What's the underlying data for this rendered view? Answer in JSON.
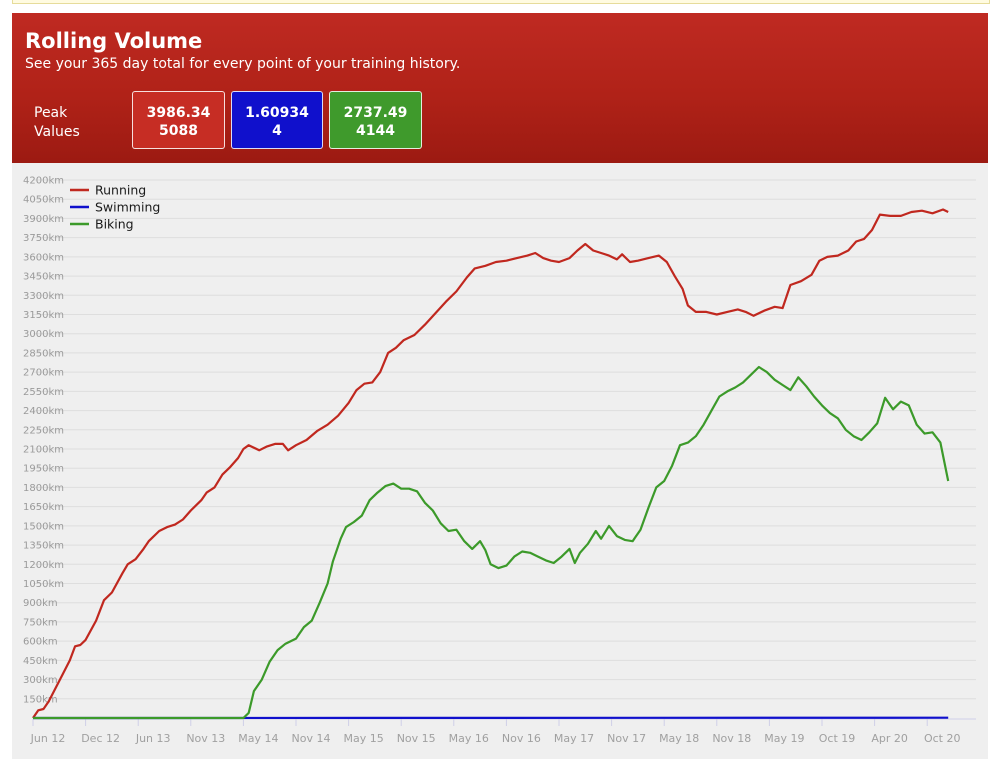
{
  "header": {
    "title": "Rolling Volume",
    "subtitle": "See your 365 day total for every point of your training history.",
    "peak_label_line1": "Peak",
    "peak_label_line2": "Values"
  },
  "peaks": {
    "running": {
      "line1": "3986.34",
      "line2": "5088",
      "color": "#c62d24"
    },
    "swimming": {
      "line1": "1.60934",
      "line2": "4",
      "color": "#1010cc"
    },
    "biking": {
      "line1": "2737.49",
      "line2": "4144",
      "color": "#3f9a2c"
    }
  },
  "chart_data": {
    "type": "line",
    "title": "",
    "xlabel": "",
    "ylabel": "",
    "ylim": [
      0,
      4200
    ],
    "y_ticks": [
      150,
      300,
      450,
      600,
      750,
      900,
      1050,
      1200,
      1350,
      1500,
      1650,
      1800,
      1950,
      2100,
      2250,
      2400,
      2550,
      2700,
      2850,
      3000,
      3150,
      3300,
      3450,
      3600,
      3750,
      3900,
      4050,
      4200
    ],
    "y_tick_suffix": "km",
    "x_ticks": [
      "Jun 12",
      "Dec 12",
      "Jun 13",
      "Nov 13",
      "May 14",
      "Nov 14",
      "May 15",
      "Nov 15",
      "May 16",
      "Nov 16",
      "May 17",
      "Nov 17",
      "May 18",
      "Nov 18",
      "May 19",
      "Oct 19",
      "Apr 20",
      "Oct 20"
    ],
    "x_end": 18.4,
    "grid": true,
    "legend_position": "top-left",
    "series": [
      {
        "name": "Running",
        "color": "#c0281f",
        "points": [
          [
            0,
            0
          ],
          [
            0.1,
            60
          ],
          [
            0.2,
            70
          ],
          [
            0.3,
            130
          ],
          [
            0.5,
            290
          ],
          [
            0.7,
            450
          ],
          [
            0.8,
            560
          ],
          [
            0.9,
            570
          ],
          [
            1.0,
            610
          ],
          [
            1.2,
            760
          ],
          [
            1.35,
            920
          ],
          [
            1.5,
            980
          ],
          [
            1.7,
            1130
          ],
          [
            1.8,
            1200
          ],
          [
            1.95,
            1240
          ],
          [
            2.1,
            1320
          ],
          [
            2.2,
            1380
          ],
          [
            2.4,
            1460
          ],
          [
            2.55,
            1490
          ],
          [
            2.7,
            1510
          ],
          [
            2.85,
            1550
          ],
          [
            3.0,
            1620
          ],
          [
            3.2,
            1700
          ],
          [
            3.3,
            1760
          ],
          [
            3.45,
            1800
          ],
          [
            3.6,
            1900
          ],
          [
            3.75,
            1960
          ],
          [
            3.9,
            2030
          ],
          [
            4.0,
            2100
          ],
          [
            4.1,
            2130
          ],
          [
            4.3,
            2090
          ],
          [
            4.45,
            2120
          ],
          [
            4.6,
            2140
          ],
          [
            4.75,
            2140
          ],
          [
            4.85,
            2090
          ],
          [
            5.0,
            2130
          ],
          [
            5.2,
            2170
          ],
          [
            5.4,
            2240
          ],
          [
            5.6,
            2290
          ],
          [
            5.8,
            2360
          ],
          [
            6.0,
            2460
          ],
          [
            6.15,
            2560
          ],
          [
            6.3,
            2610
          ],
          [
            6.45,
            2620
          ],
          [
            6.6,
            2700
          ],
          [
            6.75,
            2850
          ],
          [
            6.9,
            2890
          ],
          [
            7.05,
            2950
          ],
          [
            7.25,
            2990
          ],
          [
            7.45,
            3070
          ],
          [
            7.65,
            3160
          ],
          [
            7.85,
            3250
          ],
          [
            8.05,
            3330
          ],
          [
            8.25,
            3440
          ],
          [
            8.4,
            3510
          ],
          [
            8.6,
            3530
          ],
          [
            8.8,
            3560
          ],
          [
            9.0,
            3570
          ],
          [
            9.2,
            3590
          ],
          [
            9.4,
            3610
          ],
          [
            9.55,
            3630
          ],
          [
            9.7,
            3590
          ],
          [
            9.85,
            3570
          ],
          [
            10.0,
            3560
          ],
          [
            10.2,
            3590
          ],
          [
            10.35,
            3650
          ],
          [
            10.5,
            3700
          ],
          [
            10.65,
            3650
          ],
          [
            10.8,
            3630
          ],
          [
            10.95,
            3610
          ],
          [
            11.1,
            3580
          ],
          [
            11.2,
            3620
          ],
          [
            11.35,
            3560
          ],
          [
            11.5,
            3570
          ],
          [
            11.7,
            3590
          ],
          [
            11.9,
            3610
          ],
          [
            12.05,
            3560
          ],
          [
            12.2,
            3450
          ],
          [
            12.35,
            3350
          ],
          [
            12.45,
            3220
          ],
          [
            12.6,
            3170
          ],
          [
            12.8,
            3170
          ],
          [
            13.0,
            3150
          ],
          [
            13.2,
            3170
          ],
          [
            13.4,
            3190
          ],
          [
            13.55,
            3170
          ],
          [
            13.7,
            3140
          ],
          [
            13.9,
            3180
          ],
          [
            14.1,
            3210
          ],
          [
            14.25,
            3200
          ],
          [
            14.4,
            3380
          ],
          [
            14.6,
            3410
          ],
          [
            14.8,
            3460
          ],
          [
            14.95,
            3570
          ],
          [
            15.1,
            3600
          ],
          [
            15.3,
            3610
          ],
          [
            15.5,
            3650
          ],
          [
            15.65,
            3720
          ],
          [
            15.8,
            3740
          ],
          [
            15.95,
            3810
          ],
          [
            16.1,
            3930
          ],
          [
            16.3,
            3920
          ],
          [
            16.5,
            3920
          ],
          [
            16.7,
            3950
          ],
          [
            16.9,
            3960
          ],
          [
            17.1,
            3940
          ],
          [
            17.3,
            3970
          ],
          [
            17.4,
            3950
          ]
        ]
      },
      {
        "name": "Swimming",
        "color": "#1010cc",
        "points": [
          [
            0,
            0
          ],
          [
            17.4,
            2
          ]
        ]
      },
      {
        "name": "Biking",
        "color": "#3c9a2a",
        "points": [
          [
            0,
            0
          ],
          [
            3.0,
            0
          ],
          [
            4.0,
            0
          ],
          [
            4.1,
            40
          ],
          [
            4.2,
            210
          ],
          [
            4.35,
            300
          ],
          [
            4.5,
            440
          ],
          [
            4.65,
            530
          ],
          [
            4.8,
            580
          ],
          [
            5.0,
            620
          ],
          [
            5.15,
            710
          ],
          [
            5.3,
            760
          ],
          [
            5.45,
            900
          ],
          [
            5.6,
            1050
          ],
          [
            5.7,
            1220
          ],
          [
            5.85,
            1400
          ],
          [
            5.95,
            1490
          ],
          [
            6.1,
            1530
          ],
          [
            6.25,
            1580
          ],
          [
            6.4,
            1700
          ],
          [
            6.55,
            1760
          ],
          [
            6.7,
            1810
          ],
          [
            6.85,
            1830
          ],
          [
            7.0,
            1790
          ],
          [
            7.15,
            1790
          ],
          [
            7.3,
            1770
          ],
          [
            7.45,
            1680
          ],
          [
            7.6,
            1620
          ],
          [
            7.75,
            1520
          ],
          [
            7.9,
            1460
          ],
          [
            8.05,
            1470
          ],
          [
            8.2,
            1380
          ],
          [
            8.35,
            1320
          ],
          [
            8.5,
            1380
          ],
          [
            8.6,
            1310
          ],
          [
            8.7,
            1200
          ],
          [
            8.85,
            1170
          ],
          [
            9.0,
            1190
          ],
          [
            9.15,
            1260
          ],
          [
            9.3,
            1300
          ],
          [
            9.45,
            1290
          ],
          [
            9.6,
            1260
          ],
          [
            9.75,
            1230
          ],
          [
            9.9,
            1210
          ],
          [
            10.05,
            1260
          ],
          [
            10.2,
            1320
          ],
          [
            10.3,
            1210
          ],
          [
            10.4,
            1290
          ],
          [
            10.55,
            1360
          ],
          [
            10.7,
            1460
          ],
          [
            10.8,
            1400
          ],
          [
            10.95,
            1500
          ],
          [
            11.1,
            1420
          ],
          [
            11.25,
            1390
          ],
          [
            11.4,
            1380
          ],
          [
            11.55,
            1470
          ],
          [
            11.7,
            1640
          ],
          [
            11.85,
            1800
          ],
          [
            12.0,
            1850
          ],
          [
            12.15,
            1970
          ],
          [
            12.3,
            2130
          ],
          [
            12.45,
            2150
          ],
          [
            12.6,
            2200
          ],
          [
            12.75,
            2290
          ],
          [
            12.9,
            2400
          ],
          [
            13.05,
            2510
          ],
          [
            13.2,
            2550
          ],
          [
            13.35,
            2580
          ],
          [
            13.5,
            2620
          ],
          [
            13.65,
            2680
          ],
          [
            13.8,
            2740
          ],
          [
            13.95,
            2700
          ],
          [
            14.1,
            2640
          ],
          [
            14.25,
            2600
          ],
          [
            14.4,
            2560
          ],
          [
            14.55,
            2660
          ],
          [
            14.7,
            2590
          ],
          [
            14.85,
            2510
          ],
          [
            15.0,
            2440
          ],
          [
            15.15,
            2380
          ],
          [
            15.3,
            2340
          ],
          [
            15.45,
            2250
          ],
          [
            15.6,
            2200
          ],
          [
            15.75,
            2170
          ],
          [
            15.9,
            2230
          ],
          [
            16.05,
            2300
          ],
          [
            16.2,
            2500
          ],
          [
            16.35,
            2410
          ],
          [
            16.5,
            2470
          ],
          [
            16.65,
            2440
          ],
          [
            16.8,
            2290
          ],
          [
            16.95,
            2220
          ],
          [
            17.1,
            2230
          ],
          [
            17.25,
            2150
          ],
          [
            17.4,
            1850
          ]
        ]
      }
    ]
  }
}
